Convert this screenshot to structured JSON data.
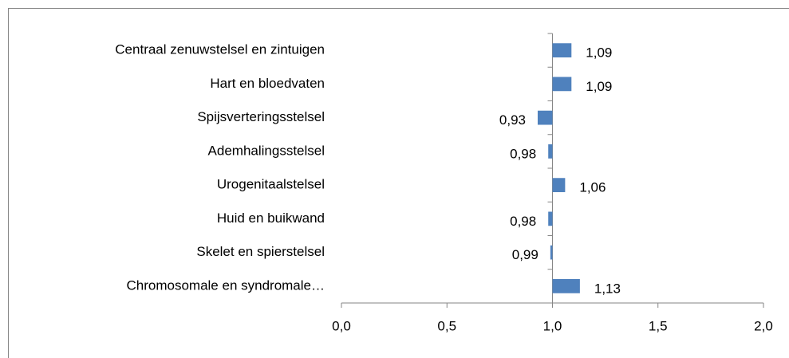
{
  "chart_data": {
    "type": "bar",
    "orientation": "horizontal",
    "categories": [
      "Centraal zenuwstelsel en zintuigen",
      "Hart en bloedvaten",
      "Spijsverteringsstelsel",
      "Ademhalingsstelsel",
      "Urogenitaalstelsel",
      "Huid en buikwand",
      "Skelet en spierstelsel",
      "Chromosomale en syndromale…"
    ],
    "values": [
      1.09,
      1.09,
      0.93,
      0.98,
      1.06,
      0.98,
      0.99,
      1.13
    ],
    "value_labels": [
      "1,09",
      "1,09",
      "0,93",
      "0,98",
      "1,06",
      "0,98",
      "0,99",
      "1,13"
    ],
    "color": "#4f81bd",
    "baseline": 1,
    "xlim": [
      0,
      2
    ],
    "xticks": [
      {
        "value": 0,
        "label": "0,0"
      },
      {
        "value": 0.5,
        "label": "0,5"
      },
      {
        "value": 1,
        "label": "1,0"
      },
      {
        "value": 1.5,
        "label": "1,5"
      },
      {
        "value": 2,
        "label": "2,0"
      }
    ],
    "grid": false
  }
}
